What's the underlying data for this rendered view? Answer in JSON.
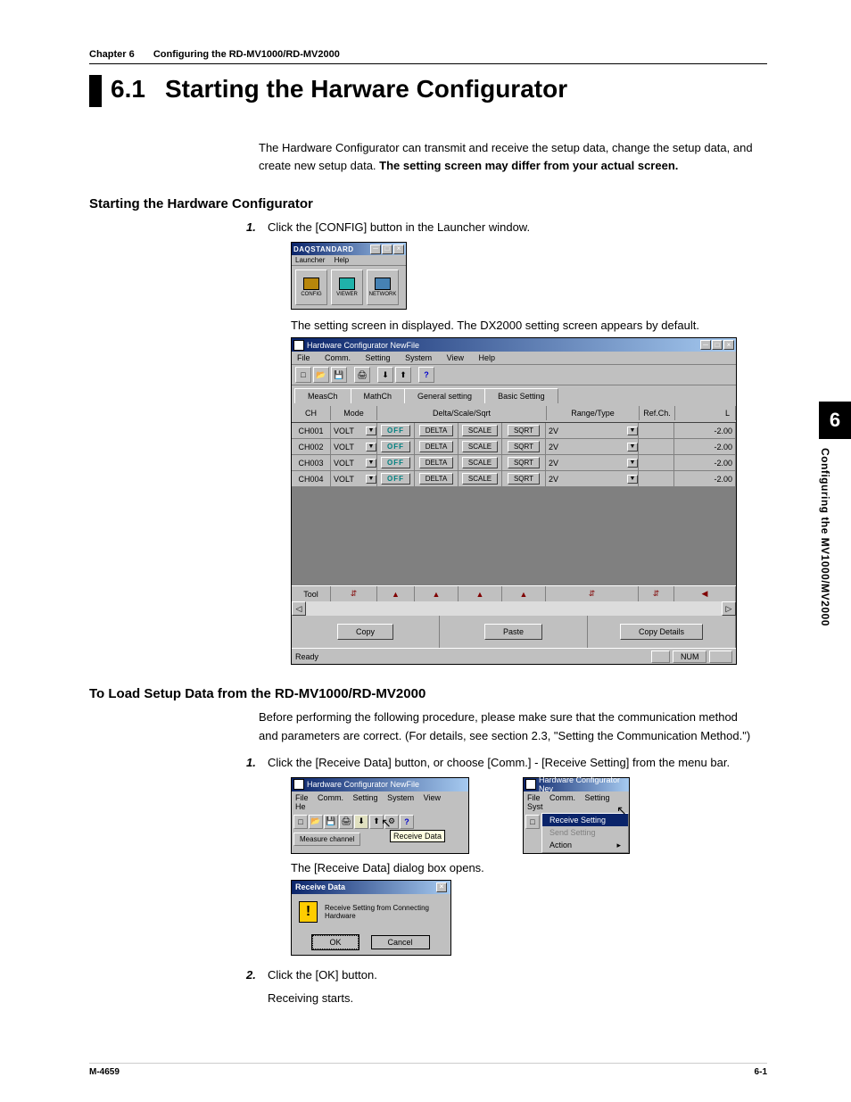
{
  "chapter": {
    "label": "Chapter 6",
    "title": "Configuring the RD-MV1000/RD-MV2000"
  },
  "section": {
    "num": "6.1",
    "title": "Starting the Harware Configurator"
  },
  "intro": {
    "p1a": "The Hardware Configurator can transmit and receive the setup data, change the setup data, and create new setup data.  ",
    "p1b": "The setting screen may differ from your actual screen."
  },
  "sub1": "Starting the Hardware Configurator",
  "step1": {
    "num": "1.",
    "text": "Click the [CONFIG] button in the Launcher window."
  },
  "launcher": {
    "title": "DAQSTANDARD",
    "menu": [
      "Launcher",
      "Help"
    ],
    "icons": [
      {
        "label": "CONFIG"
      },
      {
        "label": "VIEWER"
      },
      {
        "label": "NETWORK"
      }
    ]
  },
  "note1": "The setting screen in displayed. The DX2000 setting screen appears by default.",
  "hw": {
    "title": "Hardware Configurator NewFile",
    "menu": [
      "File",
      "Comm.",
      "Setting",
      "System",
      "View",
      "Help"
    ],
    "tabs": [
      "MeasCh",
      "MathCh",
      "General setting",
      "Basic Setting"
    ],
    "head": {
      "ch": "CH",
      "mode": "Mode",
      "dss": "Delta/Scale/Sqrt",
      "rt": "Range/Type",
      "ref": "Ref.Ch.",
      "l": "L"
    },
    "sub": {
      "a": "DELTA",
      "b": "SCALE",
      "c": "SQRT"
    },
    "rows": [
      {
        "ch": "CH001",
        "mode": "VOLT",
        "off": "OFF",
        "rt": "2V",
        "l": "-2.00"
      },
      {
        "ch": "CH002",
        "mode": "VOLT",
        "off": "OFF",
        "rt": "2V",
        "l": "-2.00"
      },
      {
        "ch": "CH003",
        "mode": "VOLT",
        "off": "OFF",
        "rt": "2V",
        "l": "-2.00"
      },
      {
        "ch": "CH004",
        "mode": "VOLT",
        "off": "OFF",
        "rt": "2V",
        "l": "-2.00"
      }
    ],
    "toolrow_label": "Tool",
    "btns": {
      "copy": "Copy",
      "paste": "Paste",
      "copyd": "Copy Details"
    },
    "status": {
      "ready": "Ready",
      "num": "NUM"
    }
  },
  "sub2": "To Load Setup Data from the RD-MV1000/RD-MV2000",
  "load_intro": "Before performing the following procedure, please make sure that the communication method and parameters are correct.  (For details, see section 2.3, \"Setting the Communication Method.\")",
  "step_l1": {
    "num": "1.",
    "text": "Click the [Receive Data] button, or choose [Comm.] - [Receive Setting] from the menu bar."
  },
  "ss1": {
    "title": "Hardware Configurator NewFile",
    "menu": [
      "File",
      "Comm.",
      "Setting",
      "System",
      "View",
      "He"
    ],
    "tab": "Measure channel",
    "tooltip": "Receive Data"
  },
  "ss2": {
    "title": "Hardware Configurator Nev",
    "menu": [
      "File",
      "Comm.",
      "Setting",
      "Syst"
    ],
    "items": [
      {
        "label": "Receive Setting",
        "hl": true
      },
      {
        "label": "Send Setting",
        "dim": true
      },
      {
        "label": "Action",
        "arrow": true
      }
    ]
  },
  "note2": "The [Receive Data] dialog box opens.",
  "dialog": {
    "title": "Receive Data",
    "msg": "Receive Setting from Connecting Hardware",
    "ok": "OK",
    "cancel": "Cancel"
  },
  "step_l2": {
    "num": "2.",
    "text": "Click the [OK] button.",
    "after": "Receiving starts."
  },
  "side": {
    "num": "6",
    "text": "Configuring the MV1000/MV2000"
  },
  "footer": {
    "l": "M-4659",
    "r": "6-1"
  }
}
